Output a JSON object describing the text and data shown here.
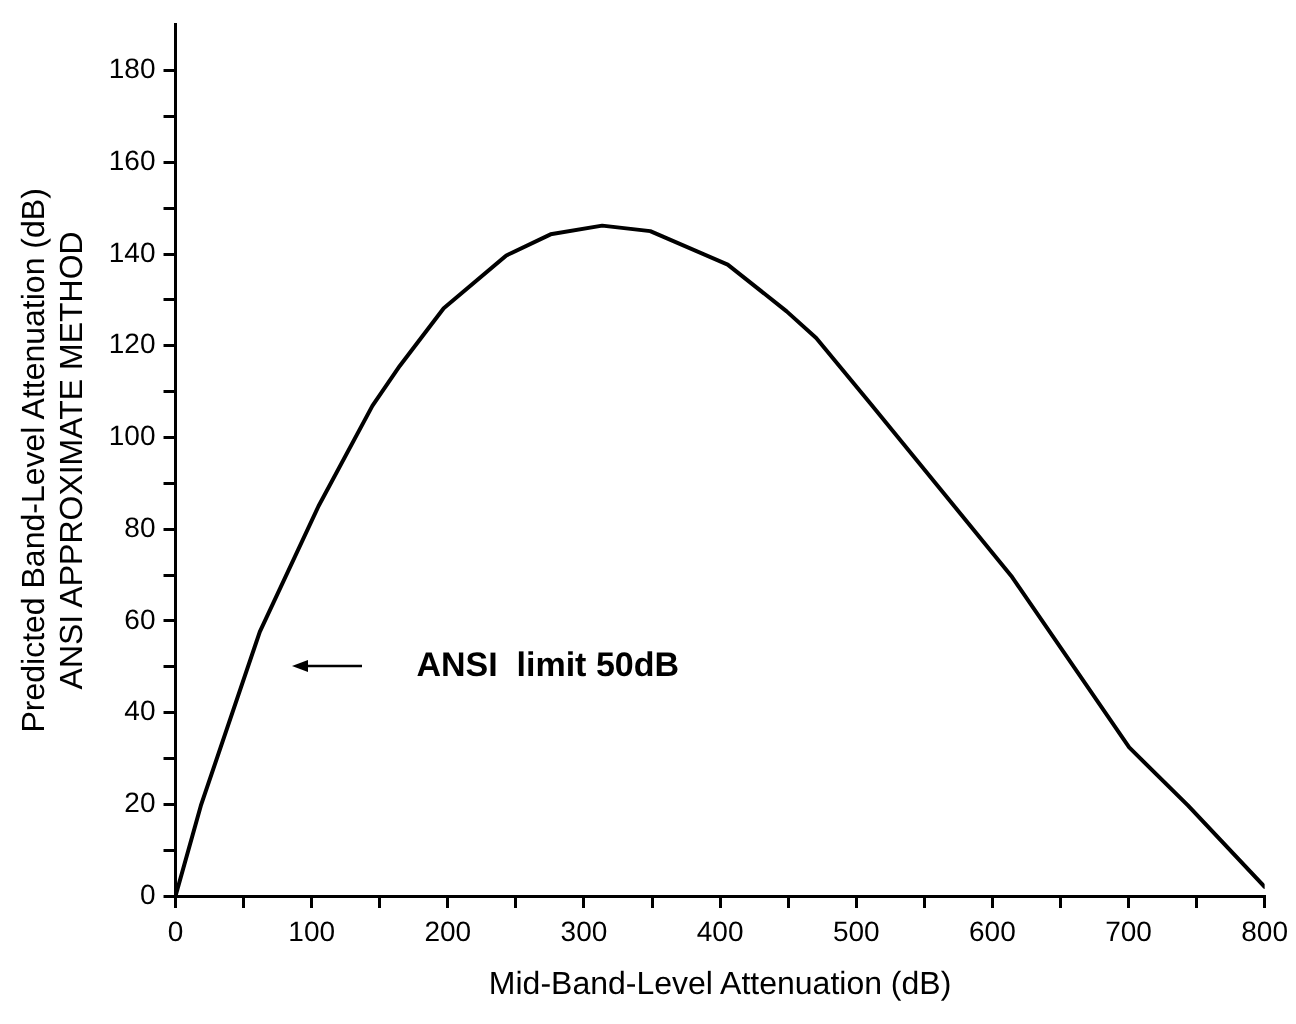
{
  "chart_data": {
    "type": "line",
    "xlabel": "Mid-Band-Level Attenuation (dB)",
    "ylabel": "Predicted Band-Level Attenuation (dB)\nANSI APPROXIMATE METHOD",
    "x": [
      0,
      18.6,
      61.9,
      105,
      144.6,
      164.7,
      197,
      243,
      275.5,
      313.4,
      348.7,
      405.6,
      448.9,
      470.6,
      511,
      613.9,
      700.5,
      743.8,
      800
    ],
    "series": [
      {
        "color": "#000000",
        "values": [
          0,
          19.7,
          57.6,
          85,
          106.9,
          115.6,
          128.2,
          139.7,
          144.3,
          146.2,
          145,
          137.7,
          127.5,
          121.7,
          107.2,
          69.8,
          32.4,
          19.7,
          2
        ]
      }
    ],
    "xlim": [
      0,
      800
    ],
    "xticks": [
      0,
      {
        "value": 50,
        "label": null
      },
      100,
      {
        "value": 150,
        "label": null
      },
      200,
      {
        "value": 250,
        "label": null
      },
      300,
      {
        "value": 350,
        "label": null
      },
      400,
      {
        "value": 450,
        "label": null
      },
      500,
      {
        "value": 550,
        "label": null
      },
      600,
      {
        "value": 650,
        "label": null
      },
      700,
      {
        "value": 750,
        "label": null
      },
      800
    ],
    "ylim": [
      0,
      190
    ],
    "yticks": [
      0,
      {
        "value": 10,
        "label": null
      },
      20,
      {
        "value": 30,
        "label": null
      },
      40,
      {
        "value": 50,
        "label": null
      },
      60,
      {
        "value": 70,
        "label": null
      },
      80,
      {
        "value": 90,
        "label": null
      },
      100,
      {
        "value": 110,
        "label": null
      },
      120,
      {
        "value": 130,
        "label": null
      },
      140,
      {
        "value": 150,
        "label": null
      },
      160,
      {
        "value": 170,
        "label": null
      },
      180
    ],
    "annotations": [
      "ANSI  limit 50dB"
    ],
    "grid": false,
    "legend": false,
    "marker": "none",
    "line_style": "solid"
  }
}
